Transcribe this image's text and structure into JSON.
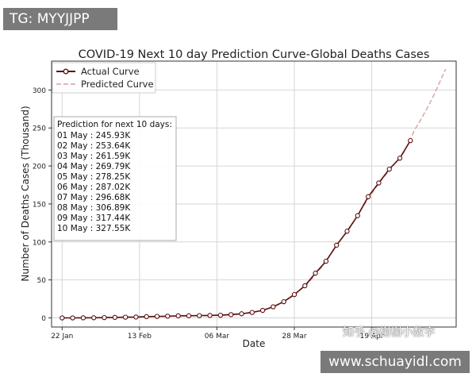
{
  "watermarks": {
    "top_left": "TG: MYYJJPP",
    "bottom_right": "www.schuayidl.com",
    "center_cn": "知乎 @榭榭小数字"
  },
  "chart_data": {
    "type": "line",
    "title": "COVID-19 Next 10 day Prediction Curve-Global Deaths Cases",
    "xlabel": "Date",
    "ylabel": "Number of Deaths Cases (Thousand)",
    "xlim": [
      "2020-01-19",
      "2020-05-13"
    ],
    "ylim": [
      -12,
      338
    ],
    "yticks": [
      0,
      50,
      100,
      150,
      200,
      250,
      300
    ],
    "xticks": [
      {
        "date": "2020-01-22",
        "label": "22 Jan"
      },
      {
        "date": "2020-02-13",
        "label": "13 Feb"
      },
      {
        "date": "2020-03-06",
        "label": "06 Mar"
      },
      {
        "date": "2020-03-28",
        "label": "28 Mar"
      },
      {
        "date": "2020-04-19",
        "label": "19 Apr"
      }
    ],
    "grid": true,
    "legend_position": "top-left",
    "series": [
      {
        "name": "Actual Curve",
        "color": "#5a0f0f",
        "marker": "circle",
        "points": [
          [
            "2020-01-22",
            0.02
          ],
          [
            "2020-01-25",
            0.04
          ],
          [
            "2020-01-28",
            0.13
          ],
          [
            "2020-01-31",
            0.21
          ],
          [
            "2020-02-03",
            0.43
          ],
          [
            "2020-02-06",
            0.64
          ],
          [
            "2020-02-09",
            0.91
          ],
          [
            "2020-02-12",
            1.12
          ],
          [
            "2020-02-15",
            1.67
          ],
          [
            "2020-02-18",
            2.0
          ],
          [
            "2020-02-21",
            2.25
          ],
          [
            "2020-02-24",
            2.7
          ],
          [
            "2020-02-27",
            2.8
          ],
          [
            "2020-03-01",
            3.0
          ],
          [
            "2020-03-04",
            3.3
          ],
          [
            "2020-03-07",
            3.6
          ],
          [
            "2020-03-10",
            4.3
          ],
          [
            "2020-03-13",
            5.4
          ],
          [
            "2020-03-16",
            7.2
          ],
          [
            "2020-03-19",
            9.9
          ],
          [
            "2020-03-22",
            14.6
          ],
          [
            "2020-03-25",
            21.3
          ],
          [
            "2020-03-28",
            30.7
          ],
          [
            "2020-03-31",
            42.3
          ],
          [
            "2020-04-03",
            58.8
          ],
          [
            "2020-04-06",
            74.6
          ],
          [
            "2020-04-09",
            95.7
          ],
          [
            "2020-04-12",
            114.1
          ],
          [
            "2020-04-15",
            134.6
          ],
          [
            "2020-04-18",
            159.5
          ],
          [
            "2020-04-21",
            177.6
          ],
          [
            "2020-04-24",
            195.8
          ],
          [
            "2020-04-27",
            210.2
          ],
          [
            "2020-04-30",
            233.4
          ]
        ]
      },
      {
        "name": "Predicted Curve",
        "color": "#d9a0a0",
        "style": "dashed",
        "points": [
          [
            "2020-01-22",
            0.02
          ],
          [
            "2020-02-05",
            0.6
          ],
          [
            "2020-02-19",
            2.1
          ],
          [
            "2020-03-04",
            3.3
          ],
          [
            "2020-03-14",
            6.0
          ],
          [
            "2020-03-20",
            11.0
          ],
          [
            "2020-03-25",
            21.0
          ],
          [
            "2020-03-28",
            30.5
          ],
          [
            "2020-04-01",
            46.0
          ],
          [
            "2020-04-05",
            68.0
          ],
          [
            "2020-04-09",
            95.0
          ],
          [
            "2020-04-13",
            120.0
          ],
          [
            "2020-04-17",
            150.0
          ],
          [
            "2020-04-21",
            177.0
          ],
          [
            "2020-04-25",
            200.0
          ],
          [
            "2020-04-28",
            217.0
          ],
          [
            "2020-04-30",
            235.0
          ],
          [
            "2020-05-01",
            245.93
          ],
          [
            "2020-05-02",
            253.64
          ],
          [
            "2020-05-03",
            261.59
          ],
          [
            "2020-05-04",
            269.79
          ],
          [
            "2020-05-05",
            278.25
          ],
          [
            "2020-05-06",
            287.02
          ],
          [
            "2020-05-07",
            296.68
          ],
          [
            "2020-05-08",
            306.89
          ],
          [
            "2020-05-09",
            317.44
          ],
          [
            "2020-05-10",
            327.55
          ]
        ]
      }
    ],
    "annotation": {
      "title": "Prediction for next 10 days:",
      "lines": [
        "01 May : 245.93K",
        "02 May : 253.64K",
        "03 May : 261.59K",
        "04 May : 269.79K",
        "05 May : 278.25K",
        "06 May : 287.02K",
        "07 May : 296.68K",
        "08 May : 306.89K",
        "09 May : 317.44K",
        "10 May : 327.55K"
      ]
    }
  }
}
